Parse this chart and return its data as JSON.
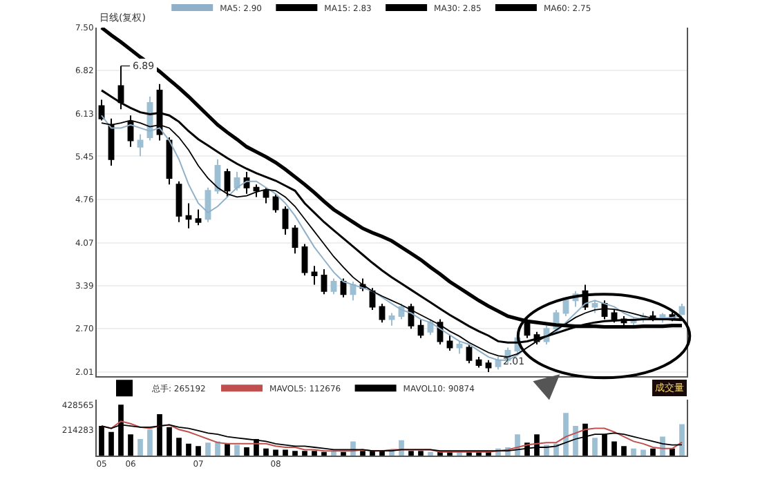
{
  "chart_data": [
    {
      "type": "candlestick",
      "title": "日线(复权)",
      "categories": [
        "05",
        null,
        null,
        "06",
        null,
        null,
        null,
        null,
        null,
        null,
        "07",
        null,
        null,
        null,
        null,
        null,
        null,
        null,
        "08",
        null,
        null,
        null,
        null,
        null,
        null,
        null,
        null,
        null,
        null,
        null,
        null,
        null,
        null,
        null,
        null,
        null,
        null,
        null,
        null,
        null,
        null,
        null,
        null,
        null,
        null,
        null,
        null,
        null,
        null,
        null,
        null,
        null,
        null,
        null,
        null,
        null,
        null,
        null,
        null,
        null,
        null
      ],
      "ohlc": [
        [
          6.25,
          6.35,
          6.02,
          6.05
        ],
        [
          5.95,
          6.05,
          5.3,
          5.4
        ],
        [
          6.57,
          6.89,
          6.2,
          6.31
        ],
        [
          6.0,
          6.1,
          5.6,
          5.7
        ],
        [
          5.6,
          5.8,
          5.45,
          5.7
        ],
        [
          5.75,
          6.4,
          5.7,
          6.3
        ],
        [
          6.5,
          6.6,
          5.7,
          5.8
        ],
        [
          5.7,
          5.75,
          5.0,
          5.1
        ],
        [
          5.0,
          5.05,
          4.4,
          4.5
        ],
        [
          4.5,
          4.7,
          4.3,
          4.45
        ],
        [
          4.45,
          4.6,
          4.35,
          4.4
        ],
        [
          4.45,
          4.95,
          4.4,
          4.9
        ],
        [
          4.9,
          5.4,
          4.85,
          5.3
        ],
        [
          5.2,
          5.25,
          4.8,
          4.9
        ],
        [
          4.95,
          5.2,
          4.9,
          5.1
        ],
        [
          5.1,
          5.2,
          4.85,
          4.95
        ],
        [
          4.95,
          5.0,
          4.8,
          4.9
        ],
        [
          4.9,
          4.95,
          4.7,
          4.8
        ],
        [
          4.8,
          4.85,
          4.55,
          4.6
        ],
        [
          4.6,
          4.65,
          4.2,
          4.3
        ],
        [
          4.3,
          4.35,
          3.9,
          4.0
        ],
        [
          4.0,
          4.05,
          3.55,
          3.6
        ],
        [
          3.6,
          3.7,
          3.4,
          3.55
        ],
        [
          3.55,
          3.65,
          3.25,
          3.3
        ],
        [
          3.3,
          3.5,
          3.25,
          3.45
        ],
        [
          3.45,
          3.5,
          3.2,
          3.25
        ],
        [
          3.25,
          3.45,
          3.15,
          3.4
        ],
        [
          3.4,
          3.5,
          3.3,
          3.35
        ],
        [
          3.3,
          3.35,
          3.0,
          3.05
        ],
        [
          3.05,
          3.1,
          2.8,
          2.85
        ],
        [
          2.85,
          2.95,
          2.75,
          2.9
        ],
        [
          2.9,
          3.1,
          2.85,
          3.05
        ],
        [
          3.05,
          3.1,
          2.7,
          2.75
        ],
        [
          2.75,
          2.85,
          2.55,
          2.6
        ],
        [
          2.65,
          2.85,
          2.6,
          2.8
        ],
        [
          2.8,
          2.85,
          2.45,
          2.5
        ],
        [
          2.5,
          2.6,
          2.35,
          2.4
        ],
        [
          2.4,
          2.5,
          2.3,
          2.45
        ],
        [
          2.4,
          2.45,
          2.15,
          2.2
        ],
        [
          2.2,
          2.25,
          2.08,
          2.12
        ],
        [
          2.15,
          2.2,
          2.01,
          2.08
        ],
        [
          2.1,
          2.25,
          2.05,
          2.2
        ],
        [
          2.2,
          2.4,
          2.15,
          2.35
        ],
        [
          2.35,
          2.6,
          2.3,
          2.55
        ],
        [
          2.8,
          2.85,
          2.55,
          2.6
        ],
        [
          2.6,
          2.65,
          2.45,
          2.5
        ],
        [
          2.5,
          2.75,
          2.45,
          2.7
        ],
        [
          2.7,
          3.0,
          2.65,
          2.95
        ],
        [
          2.95,
          3.2,
          2.9,
          3.15
        ],
        [
          3.15,
          3.3,
          3.05,
          3.25
        ],
        [
          3.3,
          3.4,
          3.0,
          3.05
        ],
        [
          3.05,
          3.15,
          2.95,
          3.1
        ],
        [
          3.1,
          3.15,
          2.85,
          2.9
        ],
        [
          2.95,
          3.0,
          2.8,
          2.85
        ],
        [
          2.85,
          2.9,
          2.75,
          2.8
        ],
        [
          2.8,
          2.88,
          2.72,
          2.85
        ],
        [
          2.85,
          2.95,
          2.8,
          2.9
        ],
        [
          2.9,
          2.98,
          2.82,
          2.86
        ],
        [
          2.86,
          2.95,
          2.8,
          2.92
        ],
        [
          2.92,
          2.96,
          2.82,
          2.85
        ],
        [
          2.93,
          3.1,
          2.92,
          3.05
        ]
      ],
      "colors": [
        "#000000",
        "#000000",
        "#000000",
        "#000000",
        "#9cbfd3",
        "#9cbfd3",
        "#000000",
        "#000000",
        "#000000",
        "#000000",
        "#000000",
        "#9cbfd3",
        "#9cbfd3",
        "#000000",
        "#9cbfd3",
        "#000000",
        "#000000",
        "#000000",
        "#000000",
        "#000000",
        "#000000",
        "#000000",
        "#000000",
        "#000000",
        "#9cbfd3",
        "#000000",
        "#9cbfd3",
        "#000000",
        "#000000",
        "#000000",
        "#9cbfd3",
        "#9cbfd3",
        "#000000",
        "#000000",
        "#9cbfd3",
        "#000000",
        "#000000",
        "#9cbfd3",
        "#000000",
        "#000000",
        "#000000",
        "#9cbfd3",
        "#9cbfd3",
        "#9cbfd3",
        "#000000",
        "#000000",
        "#9cbfd3",
        "#9cbfd3",
        "#9cbfd3",
        "#9cbfd3",
        "#000000",
        "#9cbfd3",
        "#000000",
        "#000000",
        "#000000",
        "#9cbfd3",
        "#9cbfd3",
        "#000000",
        "#9cbfd3",
        "#000000",
        "#9cbfd3"
      ],
      "series": [
        {
          "name": "MA5: 2.90",
          "type": "line",
          "color": "#8fb0c8",
          "values": [
            6.1,
            5.9,
            5.9,
            5.95,
            5.9,
            5.85,
            5.9,
            5.7,
            5.4,
            5.0,
            4.7,
            4.55,
            4.65,
            4.8,
            4.95,
            5.05,
            5.05,
            4.95,
            4.85,
            4.7,
            4.5,
            4.25,
            4.0,
            3.8,
            3.6,
            3.45,
            3.4,
            3.35,
            3.3,
            3.2,
            3.1,
            3.0,
            2.95,
            2.85,
            2.8,
            2.7,
            2.6,
            2.5,
            2.45,
            2.35,
            2.25,
            2.2,
            2.2,
            2.28,
            2.4,
            2.5,
            2.58,
            2.65,
            2.8,
            2.95,
            3.1,
            3.15,
            3.1,
            3.05,
            2.95,
            2.88,
            2.85,
            2.86,
            2.87,
            2.88,
            2.9
          ]
        },
        {
          "name": "MA15: 2.83",
          "type": "line",
          "color": "#000000",
          "values": [
            5.98,
            5.95,
            5.98,
            6.02,
            5.98,
            5.92,
            5.95,
            5.9,
            5.75,
            5.55,
            5.3,
            5.1,
            4.95,
            4.85,
            4.8,
            4.82,
            4.88,
            4.92,
            4.9,
            4.8,
            4.65,
            4.45,
            4.25,
            4.05,
            3.85,
            3.68,
            3.52,
            3.4,
            3.3,
            3.22,
            3.15,
            3.08,
            3.0,
            2.92,
            2.84,
            2.76,
            2.66,
            2.58,
            2.48,
            2.4,
            2.32,
            2.27,
            2.25,
            2.3,
            2.4,
            2.5,
            2.58,
            2.68,
            2.78,
            2.88,
            2.95,
            3.0,
            3.02,
            3.01,
            2.98,
            2.94,
            2.9,
            2.87,
            2.85,
            2.84,
            2.83
          ]
        },
        {
          "name": "MA30: 2.85",
          "type": "line",
          "color": "#000000",
          "values": [
            6.5,
            6.4,
            6.3,
            6.22,
            6.15,
            6.12,
            6.14,
            6.1,
            6.0,
            5.85,
            5.72,
            5.62,
            5.52,
            5.42,
            5.33,
            5.25,
            5.18,
            5.12,
            5.06,
            4.98,
            4.9,
            4.7,
            4.55,
            4.4,
            4.27,
            4.14,
            4.01,
            3.88,
            3.75,
            3.63,
            3.52,
            3.42,
            3.32,
            3.22,
            3.12,
            3.02,
            2.92,
            2.83,
            2.74,
            2.66,
            2.59,
            2.5,
            2.48,
            2.48,
            2.5,
            2.54,
            2.58,
            2.63,
            2.68,
            2.73,
            2.77,
            2.8,
            2.82,
            2.83,
            2.84,
            2.84,
            2.85,
            2.85,
            2.85,
            2.85,
            2.85
          ]
        },
        {
          "name": "MA60: 2.75",
          "type": "line",
          "color": "#000000",
          "values": [
            7.5,
            7.38,
            7.27,
            7.15,
            7.03,
            6.92,
            6.8,
            6.67,
            6.54,
            6.4,
            6.25,
            6.1,
            5.95,
            5.83,
            5.72,
            5.6,
            5.52,
            5.44,
            5.35,
            5.24,
            5.12,
            5.0,
            4.87,
            4.73,
            4.6,
            4.5,
            4.4,
            4.3,
            4.23,
            4.17,
            4.1,
            4.0,
            3.9,
            3.8,
            3.68,
            3.57,
            3.45,
            3.35,
            3.25,
            3.15,
            3.06,
            2.98,
            2.9,
            2.86,
            2.82,
            2.8,
            2.78,
            2.76,
            2.75,
            2.74,
            2.74,
            2.74,
            2.73,
            2.73,
            2.73,
            2.73,
            2.74,
            2.74,
            2.74,
            2.75,
            2.75
          ]
        }
      ],
      "ylim": [
        1.94,
        7.5
      ],
      "yticks": [
        2.01,
        {
          "value": 2.7,
          "label": "2.70"
        },
        3.39,
        4.07,
        4.76,
        5.45,
        6.13,
        6.82,
        {
          "value": 7.5,
          "label": "7.50"
        }
      ],
      "grid": "y",
      "tick_labels": "y",
      "legend": "top left",
      "annotations": [
        {
          "text": "6.89",
          "y": 6.89
        },
        "2.01"
      ]
    },
    {
      "type": "bar",
      "categories": [
        "05",
        null,
        null,
        "06",
        null,
        null,
        null,
        null,
        null,
        null,
        "07",
        null,
        null,
        null,
        null,
        null,
        null,
        null,
        "08",
        null,
        null,
        null,
        null,
        null,
        null,
        null,
        null,
        null,
        null,
        null,
        null,
        null,
        null,
        null,
        null,
        null,
        null,
        null,
        null,
        null,
        null,
        null,
        null,
        null,
        null,
        null,
        null,
        null,
        null,
        null,
        null,
        null,
        null,
        null,
        null,
        null,
        null,
        null,
        null,
        null,
        null
      ],
      "series": [
        {
          "name": "总手: 265192",
          "type": "bar",
          "values": [
            250000,
            200000,
            430000,
            180000,
            140000,
            220000,
            350000,
            240000,
            150000,
            100000,
            80000,
            110000,
            120000,
            100000,
            90000,
            70000,
            140000,
            60000,
            50000,
            50000,
            40000,
            40000,
            40000,
            30000,
            40000,
            30000,
            120000,
            40000,
            40000,
            40000,
            40000,
            130000,
            40000,
            40000,
            30000,
            30000,
            30000,
            30000,
            30000,
            30000,
            40000,
            60000,
            70000,
            180000,
            110000,
            180000,
            90000,
            100000,
            360000,
            250000,
            270000,
            150000,
            180000,
            120000,
            80000,
            60000,
            50000,
            60000,
            160000,
            60000,
            265192
          ],
          "colors": [
            "#000000",
            "#000000",
            "#000000",
            "#000000",
            "#9cbfd3",
            "#9cbfd3",
            "#000000",
            "#000000",
            "#000000",
            "#000000",
            "#000000",
            "#9cbfd3",
            "#9cbfd3",
            "#000000",
            "#9cbfd3",
            "#000000",
            "#000000",
            "#000000",
            "#000000",
            "#000000",
            "#000000",
            "#000000",
            "#000000",
            "#000000",
            "#9cbfd3",
            "#000000",
            "#9cbfd3",
            "#000000",
            "#000000",
            "#000000",
            "#9cbfd3",
            "#9cbfd3",
            "#000000",
            "#000000",
            "#9cbfd3",
            "#000000",
            "#000000",
            "#9cbfd3",
            "#000000",
            "#000000",
            "#000000",
            "#9cbfd3",
            "#9cbfd3",
            "#9cbfd3",
            "#000000",
            "#000000",
            "#9cbfd3",
            "#9cbfd3",
            "#9cbfd3",
            "#9cbfd3",
            "#000000",
            "#9cbfd3",
            "#000000",
            "#000000",
            "#000000",
            "#9cbfd3",
            "#9cbfd3",
            "#000000",
            "#9cbfd3",
            "#000000",
            "#9cbfd3"
          ]
        },
        {
          "name": "MAVOL5: 112676",
          "type": "line",
          "color": "#c0504d",
          "values": [
            250000,
            230000,
            290000,
            270000,
            240000,
            230000,
            250000,
            260000,
            220000,
            200000,
            170000,
            140000,
            110000,
            100000,
            100000,
            100000,
            100000,
            100000,
            80000,
            70000,
            70000,
            50000,
            50000,
            40000,
            40000,
            40000,
            40000,
            50000,
            40000,
            40000,
            50000,
            50000,
            50000,
            50000,
            50000,
            30000,
            30000,
            30000,
            30000,
            30000,
            30000,
            40000,
            50000,
            70000,
            90000,
            100000,
            110000,
            110000,
            160000,
            190000,
            220000,
            230000,
            230000,
            200000,
            160000,
            120000,
            100000,
            70000,
            60000,
            60000,
            112676
          ]
        },
        {
          "name": "MAVOL10: 90874",
          "type": "line",
          "color": "#000000",
          "values": [
            250000,
            230000,
            260000,
            250000,
            240000,
            240000,
            250000,
            260000,
            240000,
            230000,
            210000,
            190000,
            180000,
            160000,
            150000,
            140000,
            130000,
            120000,
            100000,
            90000,
            80000,
            80000,
            70000,
            60000,
            50000,
            50000,
            50000,
            50000,
            40000,
            40000,
            40000,
            50000,
            50000,
            50000,
            50000,
            40000,
            40000,
            40000,
            40000,
            40000,
            40000,
            40000,
            40000,
            50000,
            60000,
            70000,
            70000,
            80000,
            110000,
            140000,
            160000,
            180000,
            180000,
            190000,
            180000,
            160000,
            140000,
            120000,
            100000,
            90000,
            90874
          ]
        }
      ],
      "ylim": [
        0,
        470000
      ],
      "legend": "top left",
      "yticks": [
        214283,
        428565
      ],
      "annotations": [
        "成交量"
      ]
    }
  ]
}
